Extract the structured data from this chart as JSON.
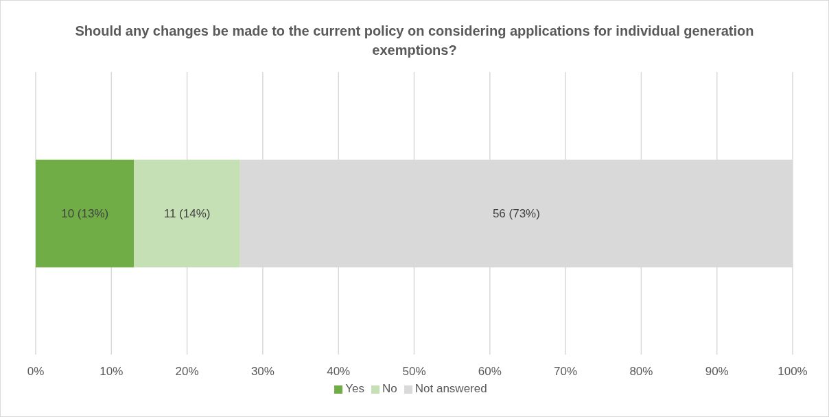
{
  "chart_data": {
    "type": "bar",
    "orientation": "horizontal",
    "stacked": true,
    "title": "Should any changes be made to the current policy on considering applications for individual generation exemptions?",
    "categories": [
      null
    ],
    "series": [
      {
        "name": "Yes",
        "color": "#70ad47",
        "values": [
          13
        ],
        "value_labels": [
          "10 (13%)"
        ]
      },
      {
        "name": "No",
        "color": "#c5e0b4",
        "values": [
          14
        ],
        "value_labels": [
          "11 (14%)"
        ]
      },
      {
        "name": "Not answered",
        "color": "#d9d9d9",
        "values": [
          73
        ],
        "value_labels": [
          "56 (73%)"
        ]
      }
    ],
    "xlim": [
      0,
      100
    ],
    "xticks": [
      {
        "value": 0,
        "label": "0%"
      },
      {
        "value": 10,
        "label": "10%"
      },
      {
        "value": 20,
        "label": "20%"
      },
      {
        "value": 30,
        "label": "30%"
      },
      {
        "value": 40,
        "label": "40%"
      },
      {
        "value": 50,
        "label": "50%"
      },
      {
        "value": 60,
        "label": "60%"
      },
      {
        "value": 70,
        "label": "70%"
      },
      {
        "value": 80,
        "label": "80%"
      },
      {
        "value": 90,
        "label": "90%"
      },
      {
        "value": 100,
        "label": "100%"
      }
    ],
    "grid": "x",
    "legend": "bottom"
  }
}
